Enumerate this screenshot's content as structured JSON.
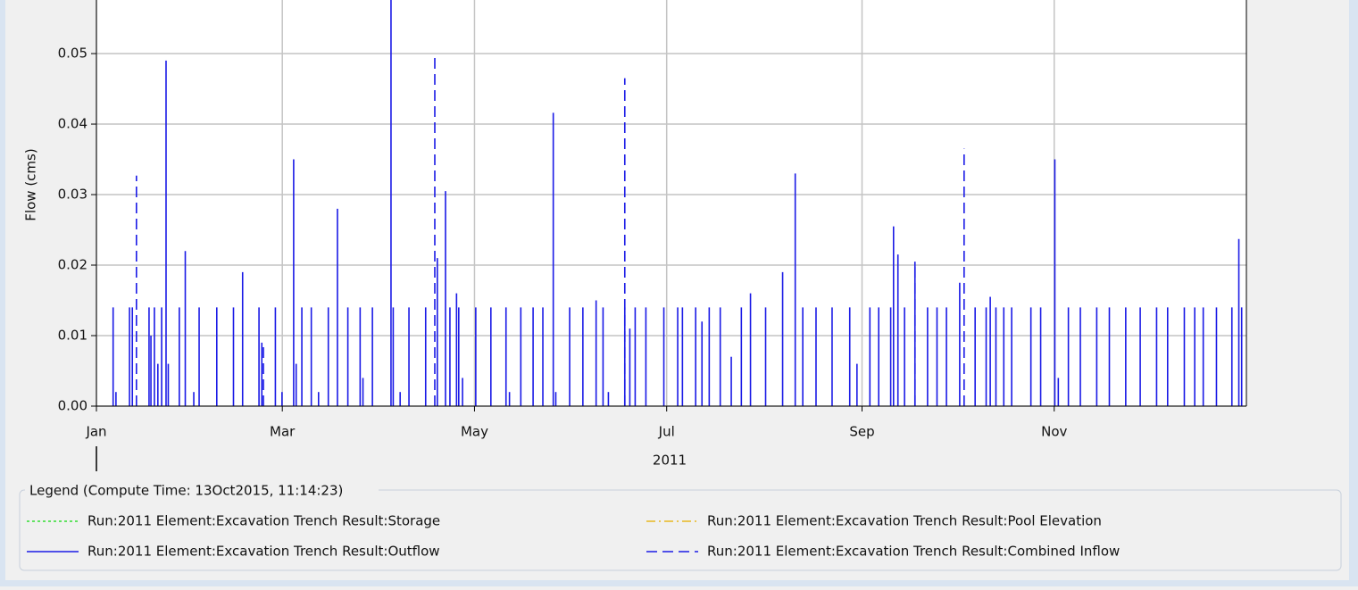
{
  "chart_data": {
    "type": "bar",
    "y_label": "Flow (cms)",
    "x_label": "2011",
    "legend_title": "Legend (Compute Time: 13Oct2015, 11:14:23)",
    "xlim": [
      0,
      365
    ],
    "xticks": [
      {
        "value": 0,
        "label": "Jan"
      },
      {
        "value": 59,
        "label": "Mar"
      },
      {
        "value": 120,
        "label": "May"
      },
      {
        "value": 181,
        "label": "Jul"
      },
      {
        "value": 243,
        "label": "Sep"
      },
      {
        "value": 304,
        "label": "Nov"
      }
    ],
    "ylim": [
      0,
      0.0576
    ],
    "yticks": [
      {
        "value": 0,
        "label": "0.00"
      },
      0.01,
      0.02,
      0.03,
      0.04,
      0.05
    ],
    "grid": true,
    "series": [
      {
        "name": "Run:2011 Element:Excavation Trench Result:Storage",
        "color": "#33dd33",
        "style": "dotted",
        "x": [],
        "values": []
      },
      {
        "name": "Run:2011 Element:Excavation Trench Result:Pool Elevation",
        "color": "#e8b820",
        "style": "dash-dot",
        "x": [],
        "values": []
      },
      {
        "name": "Run:2011 Element:Excavation Trench Result:Outflow",
        "color": "#1a1ae6",
        "style": "solid",
        "x": [
          5.3,
          6.2,
          10.5,
          11.4,
          16.7,
          17.3,
          18.4,
          19.5,
          20.7,
          22.1,
          22.8,
          26.3,
          28.2,
          30.9,
          32.6,
          38.2,
          43.5,
          46.4,
          51.6,
          52.5,
          56.8,
          58.9,
          62.6,
          63.4,
          65.2,
          68.2,
          70.5,
          73.6,
          76.5,
          79.8,
          83.7,
          84.6,
          87.6,
          93.5,
          94.2,
          96.4,
          99.2,
          104.5,
          108.2,
          110.8,
          112.2,
          114.3,
          115.0,
          116.2,
          120.4,
          125.2,
          130.0,
          131.1,
          134.7,
          138.6,
          141.7,
          145.0,
          145.8,
          150.2,
          154.4,
          158.6,
          160.8,
          162.5,
          167.7,
          169.3,
          171.0,
          174.4,
          180.1,
          184.5,
          186.0,
          190.2,
          192.2,
          194.5,
          198.0,
          201.5,
          204.7,
          207.6,
          212.4,
          217.8,
          221.8,
          224.2,
          228.4,
          233.5,
          239.1,
          241.4,
          245.5,
          248.3,
          252.1,
          253.0,
          254.4,
          256.5,
          259.8,
          263.8,
          266.8,
          269.8,
          274.0,
          278.9,
          282.4,
          283.7,
          285.5,
          288.0,
          290.5,
          296.6,
          299.7,
          304.2,
          305.3,
          308.5,
          312.3,
          317.5,
          321.5,
          326.7,
          331.3,
          336.5,
          340.0,
          345.3,
          348.6,
          351.3,
          355.5,
          360.4,
          362.6,
          363.5
        ],
        "values": [
          0.014,
          0.002,
          0.014,
          0.014,
          0.014,
          0.01,
          0.014,
          0.006,
          0.014,
          0.049,
          0.006,
          0.014,
          0.022,
          0.002,
          0.014,
          0.014,
          0.014,
          0.019,
          0.014,
          0.009,
          0.014,
          0.002,
          0.035,
          0.006,
          0.014,
          0.014,
          0.002,
          0.014,
          0.028,
          0.014,
          0.014,
          0.004,
          0.014,
          0.0576,
          0.014,
          0.002,
          0.014,
          0.014,
          0.021,
          0.0305,
          0.014,
          0.016,
          0.014,
          0.004,
          0.014,
          0.014,
          0.014,
          0.002,
          0.014,
          0.014,
          0.014,
          0.0416,
          0.002,
          0.014,
          0.014,
          0.015,
          0.014,
          0.002,
          0.014,
          0.011,
          0.014,
          0.014,
          0.014,
          0.014,
          0.014,
          0.014,
          0.012,
          0.014,
          0.014,
          0.007,
          0.014,
          0.016,
          0.014,
          0.019,
          0.033,
          0.014,
          0.014,
          0.014,
          0.014,
          0.006,
          0.014,
          0.014,
          0.014,
          0.0255,
          0.0215,
          0.014,
          0.0205,
          0.014,
          0.014,
          0.014,
          0.0175,
          0.014,
          0.014,
          0.0155,
          0.014,
          0.014,
          0.014,
          0.014,
          0.014,
          0.035,
          0.004,
          0.014,
          0.014,
          0.014,
          0.014,
          0.014,
          0.014,
          0.014,
          0.014,
          0.014,
          0.014,
          0.014,
          0.014,
          0.014,
          0.0237,
          0.014
        ]
      },
      {
        "name": "Run:2011 Element:Excavation Trench Result:Combined Inflow",
        "color": "#1a1ae6",
        "style": "dashed",
        "x": [
          12.7,
          53.0,
          107.4,
          167.7,
          259.8,
          275.4
        ],
        "values": [
          0.0327,
          0.009,
          0.0494,
          0.0465,
          0.0205,
          0.0365
        ]
      }
    ]
  }
}
